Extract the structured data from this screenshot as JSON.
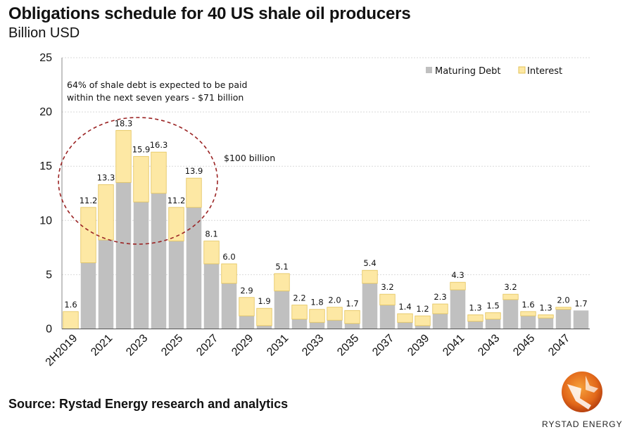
{
  "header": {
    "title": "Obligations schedule for 40 US shale oil producers",
    "subtitle": "Billion USD"
  },
  "footer": {
    "source": "Source: Rystad Energy research and analytics",
    "brand": "RYSTAD ENERGY"
  },
  "colors": {
    "maturing_debt": "#c0c0c0",
    "interest": "#fde8a4",
    "interest_stroke": "#e3c35a",
    "circle": "#9b2424",
    "grid": "#d9d9d9"
  },
  "chart_data": {
    "type": "bar",
    "stacked": true,
    "title": "Obligations schedule for 40 US shale oil producers",
    "ylabel": "Billion USD",
    "ylim": [
      0,
      25
    ],
    "yticks": [
      0,
      5,
      10,
      15,
      20,
      25
    ],
    "grid": true,
    "legend_position": "top-right",
    "categories": [
      "2H2019",
      "2020",
      "2021",
      "2022",
      "2023",
      "2024",
      "2025",
      "2026",
      "2027",
      "2028",
      "2029",
      "2030",
      "2031",
      "2032",
      "2033",
      "2034",
      "2035",
      "2036",
      "2037",
      "2038",
      "2039",
      "2040",
      "2041",
      "2042",
      "2043",
      "2044",
      "2045",
      "2046",
      "2047",
      "2048"
    ],
    "xtick_labels": [
      "2H2019",
      "2021",
      "2023",
      "2025",
      "2027",
      "2029",
      "2031",
      "2033",
      "2035",
      "2037",
      "2039",
      "2041",
      "2043",
      "2045",
      "2047"
    ],
    "series": [
      {
        "name": "Maturing Debt",
        "values": [
          0,
          6.1,
          8.2,
          13.5,
          11.7,
          12.5,
          8.1,
          11.2,
          6.0,
          4.2,
          1.2,
          0.3,
          3.5,
          0.9,
          0.6,
          0.8,
          0.5,
          4.2,
          2.2,
          0.6,
          0.3,
          1.4,
          3.6,
          0.7,
          0.9,
          2.7,
          1.2,
          1.0,
          1.8,
          1.7
        ]
      },
      {
        "name": "Interest",
        "values": [
          1.6,
          5.1,
          5.1,
          4.8,
          4.2,
          3.8,
          3.1,
          2.7,
          2.1,
          1.8,
          1.7,
          1.6,
          1.6,
          1.3,
          1.2,
          1.2,
          1.2,
          1.2,
          1.0,
          0.8,
          0.9,
          0.9,
          0.7,
          0.6,
          0.6,
          0.5,
          0.4,
          0.3,
          0.2,
          0.0
        ]
      }
    ],
    "totals": [
      1.6,
      11.2,
      13.3,
      18.3,
      15.9,
      16.3,
      11.2,
      13.9,
      8.1,
      6.0,
      2.9,
      1.9,
      5.1,
      2.2,
      1.8,
      2.0,
      1.7,
      5.4,
      3.2,
      1.4,
      1.2,
      2.3,
      4.3,
      1.3,
      1.5,
      3.2,
      1.6,
      1.3,
      2.0,
      1.7
    ],
    "total_labels": [
      "1.6",
      "11.2",
      "13.3",
      "18.3",
      "15.9",
      "16.3",
      "11.2",
      "13.9",
      "8.1",
      "6.0",
      "2.9",
      "1.9",
      "5.1",
      "2.2",
      "1.8",
      "2.0",
      "1.7",
      "5.4",
      "3.2",
      "1.4",
      "1.2",
      "2.3",
      "4.3",
      "1.3",
      "1.5",
      "3.2",
      "1.6",
      "1.3",
      "2.0",
      "1.7"
    ],
    "annotations": {
      "note_line1": "64% of shale debt is expected to be paid",
      "note_line2": "within the next seven years - $71 billion",
      "circle_label": "$100 billion"
    }
  }
}
